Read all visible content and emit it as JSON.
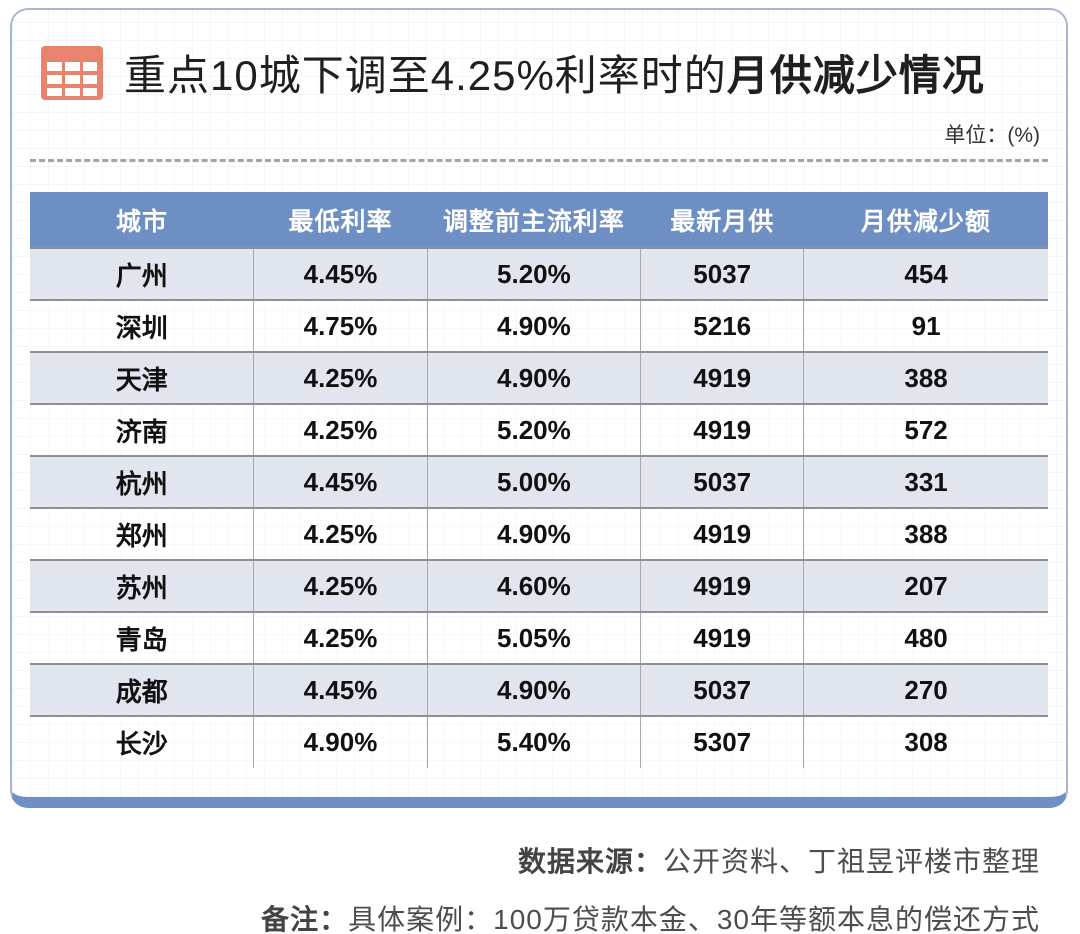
{
  "chart_data": {
    "type": "table",
    "title": "重点10城下调至4.25%利率时的月供减少情况",
    "unit": "单位：(%)",
    "columns": [
      "城市",
      "最低利率",
      "调整前主流利率",
      "最新月供",
      "月供减少额"
    ],
    "rows": [
      [
        "广州",
        "4.45%",
        "5.20%",
        "5037",
        "454"
      ],
      [
        "深圳",
        "4.75%",
        "4.90%",
        "5216",
        "91"
      ],
      [
        "天津",
        "4.25%",
        "4.90%",
        "4919",
        "388"
      ],
      [
        "济南",
        "4.25%",
        "5.20%",
        "4919",
        "572"
      ],
      [
        "杭州",
        "4.45%",
        "5.00%",
        "5037",
        "331"
      ],
      [
        "郑州",
        "4.25%",
        "4.90%",
        "4919",
        "388"
      ],
      [
        "苏州",
        "4.25%",
        "4.60%",
        "4919",
        "207"
      ],
      [
        "青岛",
        "4.25%",
        "5.05%",
        "4919",
        "480"
      ],
      [
        "成都",
        "4.45%",
        "4.90%",
        "5037",
        "270"
      ],
      [
        "长沙",
        "4.90%",
        "5.40%",
        "5307",
        "308"
      ]
    ],
    "shaded_row_indices": [
      0,
      2,
      4,
      6,
      8
    ]
  },
  "header": {
    "title_regular": "重点10城下调至4.25%利率时的",
    "title_bold": "月供减少情况",
    "unit": "单位：(%)",
    "icon": "table-grid-icon"
  },
  "footer": {
    "source_label": "数据来源：",
    "source_text": "公开资料、丁祖昱评楼市整理",
    "note_label": "备注：",
    "note_text": "具体案例：100万贷款本金、30年等额本息的偿还方式"
  },
  "colors": {
    "table_header_bg": "#6e8fc4",
    "bottom_accent_bar": "#6e90c6",
    "icon_salmon": "#e8836e",
    "shaded_row_bg": "#e1e5ee",
    "card_border": "#aab6cf",
    "row_line": "#909090"
  }
}
